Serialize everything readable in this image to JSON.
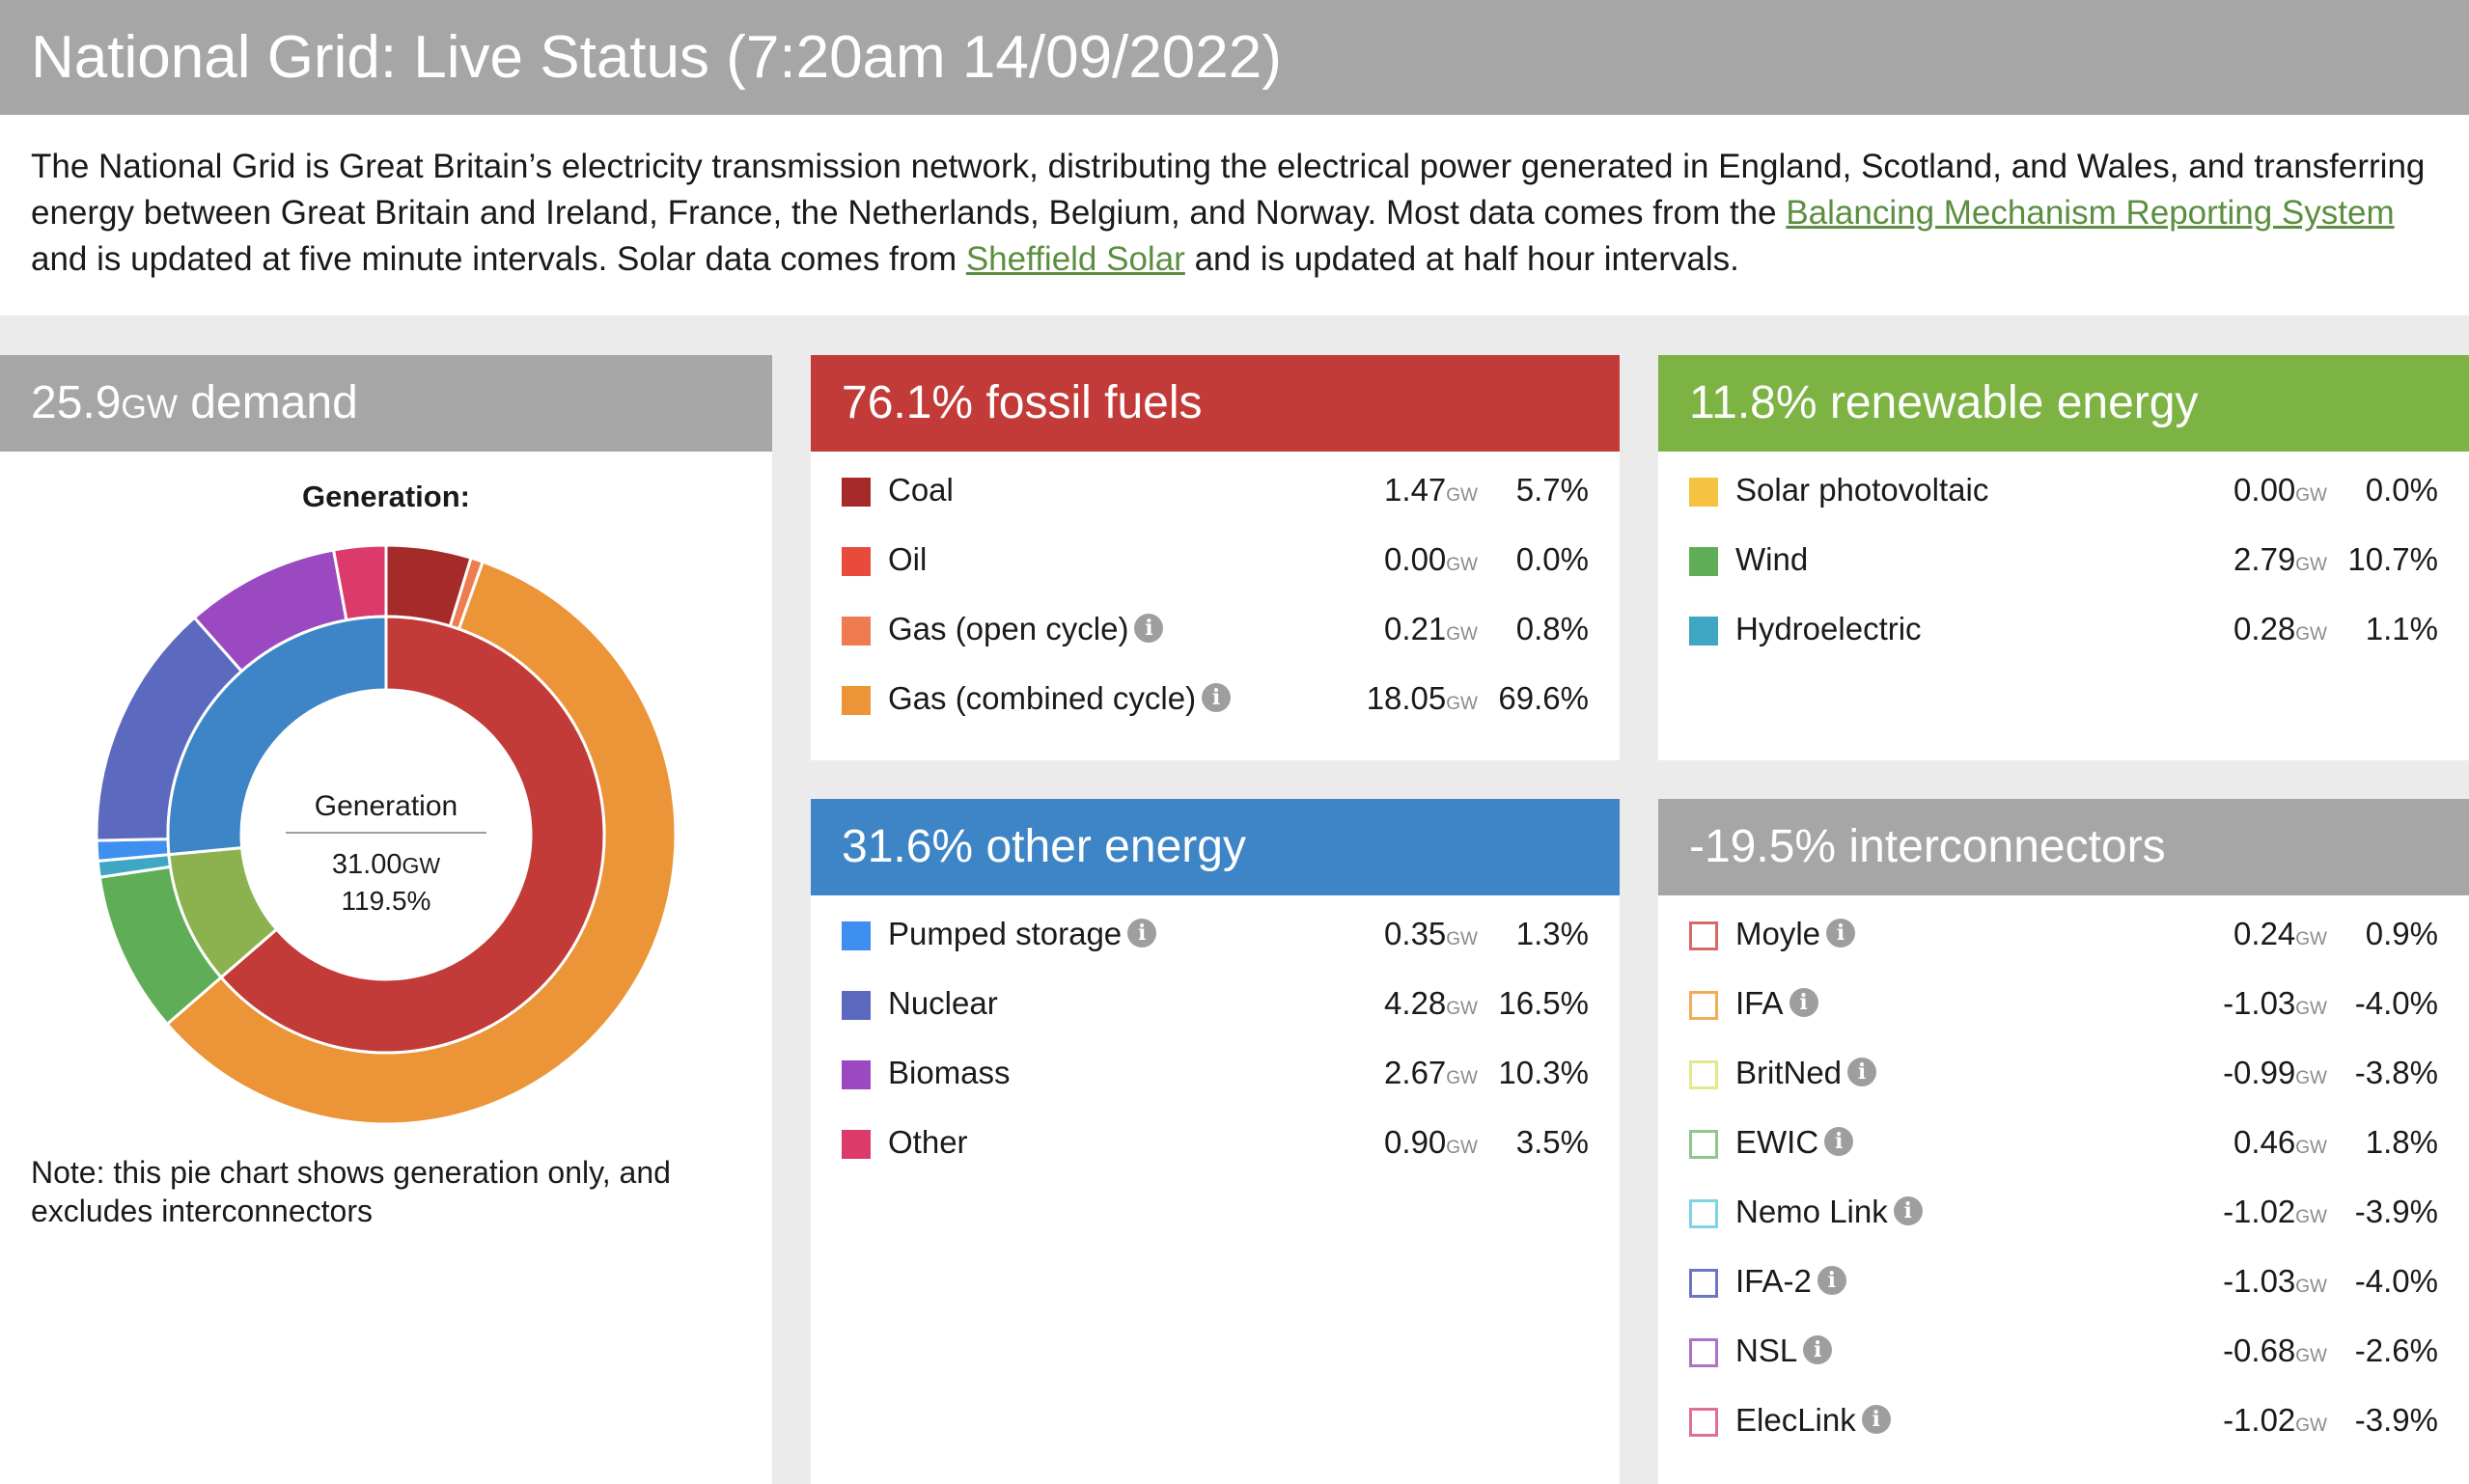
{
  "title": "National Grid: Live Status (7:20am 14/09/2022)",
  "intro": {
    "text1": "The National Grid is Great Britain’s electricity transmission network, distributing the electrical power generated in England, Scotland, and Wales, and transferring energy between Great Britain and Ireland, France, the Netherlands, Belgium, and Norway. Most data comes from the ",
    "link1": "Balancing Mechanism Reporting System",
    "text2": " and is updated at five minute intervals. Solar data comes from ",
    "link2": "Sheffield Solar",
    "text3": " and is updated at half hour intervals."
  },
  "demand": {
    "value": "25.9",
    "unit": "GW",
    "label": " demand",
    "generation_title": "Generation:",
    "center_title": "Generation",
    "center_value": "31.00",
    "center_unit": "GW",
    "center_pct": "119.5%",
    "note": "Note: this pie chart shows generation only, and excludes interconnectors"
  },
  "fossil": {
    "header": "76.1% fossil fuels",
    "color": "#c23b38",
    "rows": [
      {
        "label": "Coal",
        "gw": "1.47",
        "pct": "5.7%",
        "color": "#a52a2a",
        "info": false
      },
      {
        "label": "Oil",
        "gw": "0.00",
        "pct": "0.0%",
        "color": "#e84a3c",
        "info": false
      },
      {
        "label": "Gas (open cycle)",
        "gw": "0.21",
        "pct": "0.8%",
        "color": "#ee7c50",
        "info": true
      },
      {
        "label": "Gas (combined cycle)",
        "gw": "18.05",
        "pct": "69.6%",
        "color": "#ec9438",
        "info": true
      }
    ]
  },
  "renewable": {
    "header": "11.8% renewable energy",
    "color": "#7cb342",
    "rows": [
      {
        "label": "Solar photovoltaic",
        "gw": "0.00",
        "pct": "0.0%",
        "color": "#f5c242",
        "info": false
      },
      {
        "label": "Wind",
        "gw": "2.79",
        "pct": "10.7%",
        "color": "#5fae57",
        "info": false
      },
      {
        "label": "Hydroelectric",
        "gw": "0.28",
        "pct": "1.1%",
        "color": "#3fa6c4",
        "info": false
      }
    ]
  },
  "other": {
    "header": "31.6% other energy",
    "color": "#3d85c6",
    "rows": [
      {
        "label": "Pumped storage",
        "gw": "0.35",
        "pct": "1.3%",
        "color": "#3f8ff0",
        "info": true
      },
      {
        "label": "Nuclear",
        "gw": "4.28",
        "pct": "16.5%",
        "color": "#5b6abf",
        "info": false
      },
      {
        "label": "Biomass",
        "gw": "2.67",
        "pct": "10.3%",
        "color": "#9b49c0",
        "info": false
      },
      {
        "label": "Other",
        "gw": "0.90",
        "pct": "3.5%",
        "color": "#dc3a6a",
        "info": false
      }
    ]
  },
  "interconnectors": {
    "header": "-19.5% interconnectors",
    "color": "#a6a6a6",
    "rows": [
      {
        "label": "Moyle",
        "gw": "0.24",
        "pct": "0.9%",
        "color": "#d96868",
        "info": true
      },
      {
        "label": "IFA",
        "gw": "-1.03",
        "pct": "-4.0%",
        "color": "#f0ad55",
        "info": true
      },
      {
        "label": "BritNed",
        "gw": "-0.99",
        "pct": "-3.8%",
        "color": "#e3e98a",
        "info": true
      },
      {
        "label": "EWIC",
        "gw": "0.46",
        "pct": "1.8%",
        "color": "#8cc98a",
        "info": true
      },
      {
        "label": "Nemo Link",
        "gw": "-1.02",
        "pct": "-3.9%",
        "color": "#7fd4e3",
        "info": true
      },
      {
        "label": "IFA-2",
        "gw": "-1.03",
        "pct": "-4.0%",
        "color": "#6d75c6",
        "info": true
      },
      {
        "label": "NSL",
        "gw": "-0.68",
        "pct": "-2.6%",
        "color": "#b070c6",
        "info": true
      },
      {
        "label": "ElecLink",
        "gw": "-1.02",
        "pct": "-3.9%",
        "color": "#e07090",
        "info": true
      }
    ]
  },
  "chart_data": {
    "type": "pie",
    "title": "Generation:",
    "unit": "GW",
    "outer_ring": [
      {
        "name": "Coal",
        "value": 1.47,
        "color": "#a52a2a"
      },
      {
        "name": "Oil",
        "value": 0.0,
        "color": "#e84a3c"
      },
      {
        "name": "Gas (open cycle)",
        "value": 0.21,
        "color": "#ee7c50"
      },
      {
        "name": "Gas (combined cycle)",
        "value": 18.05,
        "color": "#ec9438"
      },
      {
        "name": "Solar photovoltaic",
        "value": 0.0,
        "color": "#f5c242"
      },
      {
        "name": "Wind",
        "value": 2.79,
        "color": "#5fae57"
      },
      {
        "name": "Hydroelectric",
        "value": 0.28,
        "color": "#3fa6c4"
      },
      {
        "name": "Pumped storage",
        "value": 0.35,
        "color": "#3f8ff0"
      },
      {
        "name": "Nuclear",
        "value": 4.28,
        "color": "#5b6abf"
      },
      {
        "name": "Biomass",
        "value": 2.67,
        "color": "#9b49c0"
      },
      {
        "name": "Other",
        "value": 0.9,
        "color": "#dc3a6a"
      }
    ],
    "inner_ring": [
      {
        "name": "fossil fuels",
        "value": 19.73,
        "color": "#c23b38"
      },
      {
        "name": "renewable energy",
        "value": 3.07,
        "color": "#8bb24e"
      },
      {
        "name": "other energy",
        "value": 8.2,
        "color": "#3d85c6"
      }
    ]
  }
}
